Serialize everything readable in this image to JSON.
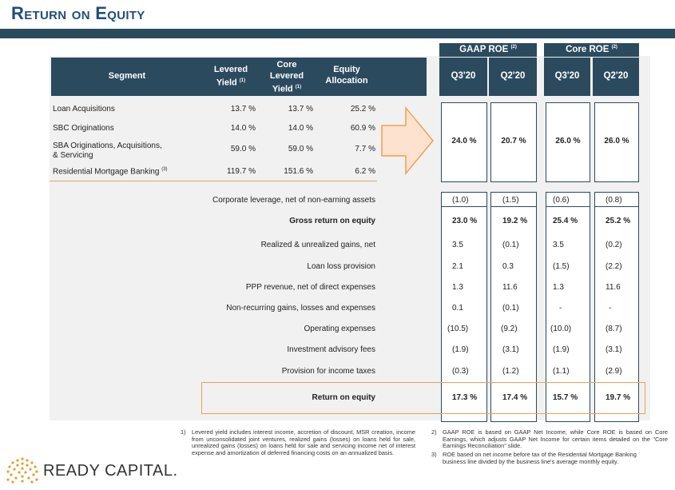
{
  "page": {
    "title": "Return on Equity"
  },
  "header": {
    "segment": "Segment",
    "levered_line1": "Levered",
    "levered_line2": "Yield",
    "levered_sup": "(1)",
    "core_line1": "Core",
    "core_line2": "Levered",
    "core_line3": "Yield",
    "core_sup": "(1)",
    "equity_line1": "Equity",
    "equity_line2": "Allocation",
    "gaap_title": "GAAP ROE",
    "gaap_sup": "(2)",
    "core_title": "Core ROE",
    "core_title_sup": "(2)",
    "q1": "Q3'20",
    "q2": "Q2'20",
    "q3": "Q3'20",
    "q4": "Q2'20"
  },
  "segments": [
    {
      "name": "Loan Acquisitions",
      "levered": "13.7 %",
      "core": "13.7 %",
      "equity": "25.2 %"
    },
    {
      "name": "SBC Originations",
      "levered": "14.0 %",
      "core": "14.0 %",
      "equity": "60.9 %"
    },
    {
      "name": "SBA Originations, Acquisitions,",
      "name2": "& Servicing",
      "levered": "59.0 %",
      "core": "59.0 %",
      "equity": "7.7 %"
    },
    {
      "name": "Residential Mortgage Banking",
      "sup": "(3)",
      "levered": "119.7 %",
      "core": "151.6 %",
      "equity": "6.2 %"
    }
  ],
  "segment_roe": {
    "gaap_q3": "24.0 %",
    "gaap_q2": "20.7 %",
    "core_q3": "26.0 %",
    "core_q2": "26.0 %"
  },
  "rows": [
    {
      "label": "Corporate leverage, net of non-earning assets",
      "bold": false,
      "v": [
        "(1.0)",
        "(1.5)",
        "(0.6)",
        "(0.8)"
      ]
    },
    {
      "label": "Gross return on equity",
      "bold": true,
      "v": [
        "23.0 %",
        "19.2 %",
        "25.4 %",
        "25.2 %"
      ]
    },
    {
      "label": "Realized & unrealized gains, net",
      "bold": false,
      "v": [
        "3.5",
        "(0.1)",
        "3.5",
        "(0.2)"
      ]
    },
    {
      "label": "Loan loss provision",
      "bold": false,
      "v": [
        "2.1",
        "0.3",
        "(1.5)",
        "(2.2)"
      ]
    },
    {
      "label": "PPP revenue, net of direct expenses",
      "bold": false,
      "v": [
        "1.3",
        "11.6",
        "1.3",
        "11.6"
      ]
    },
    {
      "label": "Non-recurring gains, losses and expenses",
      "bold": false,
      "v": [
        "0.1",
        "(0.1)",
        "-",
        "-"
      ]
    },
    {
      "label": "Operating expenses",
      "bold": false,
      "v": [
        "(10.5)",
        "(9.2)",
        "(10.0)",
        "(8.7)"
      ]
    },
    {
      "label": "Investment advisory fees",
      "bold": false,
      "v": [
        "(1.9)",
        "(3.1)",
        "(1.9)",
        "(3.1)"
      ]
    },
    {
      "label": "Provision for income taxes",
      "bold": false,
      "v": [
        "(0.3)",
        "(1.2)",
        "(1.1)",
        "(2.9)"
      ]
    },
    {
      "label": "Return on equity",
      "bold": true,
      "v": [
        "17.3 %",
        "17.4 %",
        "15.7 %",
        "19.7 %"
      ]
    }
  ],
  "footnotes": {
    "n1": "1)",
    "f1": "Levered yield includes interest income, accretion of discount, MSR creation, income from unconsolidated joint ventures, realized gains (losses) on loans held for sale, unrealized gains (losses) on loans held for sale and servicing income net of interest expense and amortization of deferred financing costs on an annualized basis.",
    "n2": "2)",
    "f2": "GAAP ROE is based on GAAP Net Income, while Core ROE is based on Core Earnings, which adjusts GAAP Net Income for certain items detailed on the \"Core Earnings Reconciliation\" slide.",
    "n3": "3)",
    "f3": "ROE based on net income before tax of the Residential Mortgage Banking business line divided by the business line's average monthly equity."
  },
  "logo": {
    "text": "READY CAPITAL."
  },
  "colors": {
    "navy": "#2b4a5e",
    "orange": "#f0a050",
    "panel": "#f1f1f1"
  }
}
